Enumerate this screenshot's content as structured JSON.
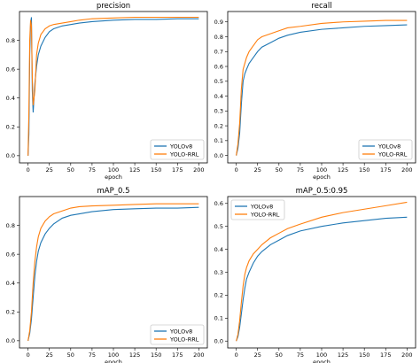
{
  "colors": {
    "series_0": "#1f77b4",
    "series_1": "#ff7f0e",
    "axis": "#000000",
    "legend_border": "#cccccc"
  },
  "chart_data": [
    {
      "type": "line",
      "title": "precision",
      "xlabel": "epoch",
      "ylabel": "",
      "xlim": [
        -10,
        210
      ],
      "ylim": [
        -0.05,
        1.0
      ],
      "xticks": [
        0,
        25,
        50,
        75,
        100,
        125,
        150,
        175,
        200
      ],
      "yticks": [
        0.0,
        0.2,
        0.4,
        0.6,
        0.8
      ],
      "ytick_labels": [
        "0.0",
        "0.2",
        "0.4",
        "0.6",
        "0.8"
      ],
      "legend_position": "lower-right",
      "series": [
        {
          "name": "YOLOv8",
          "x": [
            0,
            1,
            2,
            3,
            4,
            5,
            6,
            8,
            10,
            12,
            15,
            20,
            25,
            30,
            40,
            50,
            60,
            75,
            100,
            125,
            150,
            175,
            200
          ],
          "y": [
            0.0,
            0.15,
            0.7,
            0.92,
            0.96,
            0.45,
            0.3,
            0.5,
            0.62,
            0.7,
            0.76,
            0.82,
            0.86,
            0.88,
            0.9,
            0.91,
            0.92,
            0.93,
            0.94,
            0.945,
            0.945,
            0.95,
            0.95
          ]
        },
        {
          "name": "YOLO-RRL",
          "x": [
            0,
            1,
            2,
            3,
            4,
            5,
            6,
            8,
            10,
            12,
            15,
            20,
            25,
            30,
            40,
            50,
            60,
            75,
            100,
            125,
            150,
            175,
            200
          ],
          "y": [
            0.0,
            0.3,
            0.8,
            0.94,
            0.9,
            0.55,
            0.35,
            0.45,
            0.7,
            0.78,
            0.84,
            0.88,
            0.9,
            0.91,
            0.92,
            0.93,
            0.94,
            0.95,
            0.955,
            0.96,
            0.96,
            0.96,
            0.96
          ]
        }
      ]
    },
    {
      "type": "line",
      "title": "recall",
      "xlabel": "epoch",
      "ylabel": "",
      "xlim": [
        -10,
        210
      ],
      "ylim": [
        -0.05,
        0.97
      ],
      "xticks": [
        0,
        25,
        50,
        75,
        100,
        125,
        150,
        175,
        200
      ],
      "yticks": [
        0.0,
        0.1,
        0.2,
        0.3,
        0.4,
        0.5,
        0.6,
        0.7,
        0.8,
        0.9
      ],
      "ytick_labels": [
        "0.0",
        "0.1",
        "0.2",
        "0.3",
        "0.4",
        "0.5",
        "0.6",
        "0.7",
        "0.8",
        "0.9"
      ],
      "legend_position": "lower-right",
      "series": [
        {
          "name": "YOLOv8",
          "x": [
            0,
            2,
            4,
            6,
            8,
            10,
            12,
            15,
            20,
            25,
            30,
            40,
            50,
            60,
            75,
            100,
            125,
            150,
            175,
            200
          ],
          "y": [
            0.0,
            0.05,
            0.15,
            0.35,
            0.5,
            0.55,
            0.58,
            0.62,
            0.66,
            0.7,
            0.73,
            0.76,
            0.79,
            0.81,
            0.83,
            0.85,
            0.86,
            0.87,
            0.875,
            0.88
          ]
        },
        {
          "name": "YOLO-RRL",
          "x": [
            0,
            2,
            4,
            6,
            8,
            10,
            12,
            15,
            20,
            25,
            30,
            40,
            50,
            60,
            75,
            100,
            125,
            150,
            175,
            200
          ],
          "y": [
            0.0,
            0.08,
            0.22,
            0.45,
            0.58,
            0.62,
            0.66,
            0.7,
            0.74,
            0.78,
            0.8,
            0.82,
            0.84,
            0.86,
            0.87,
            0.89,
            0.9,
            0.905,
            0.91,
            0.91
          ]
        }
      ]
    },
    {
      "type": "line",
      "title": "mAP_0.5",
      "xlabel": "epoch",
      "ylabel": "",
      "xlim": [
        -10,
        210
      ],
      "ylim": [
        -0.05,
        1.0
      ],
      "xticks": [
        0,
        25,
        50,
        75,
        100,
        125,
        150,
        175,
        200
      ],
      "yticks": [
        0.0,
        0.2,
        0.4,
        0.6,
        0.8
      ],
      "ytick_labels": [
        "0.0",
        "0.2",
        "0.4",
        "0.6",
        "0.8"
      ],
      "legend_position": "lower-right",
      "series": [
        {
          "name": "YOLOv8",
          "x": [
            0,
            2,
            4,
            6,
            8,
            10,
            12,
            15,
            20,
            25,
            30,
            40,
            50,
            60,
            75,
            100,
            125,
            150,
            175,
            200
          ],
          "y": [
            0.0,
            0.05,
            0.15,
            0.3,
            0.45,
            0.55,
            0.62,
            0.68,
            0.74,
            0.78,
            0.81,
            0.85,
            0.87,
            0.88,
            0.895,
            0.91,
            0.915,
            0.92,
            0.92,
            0.925
          ]
        },
        {
          "name": "YOLO-RRL",
          "x": [
            0,
            2,
            4,
            6,
            8,
            10,
            12,
            15,
            20,
            25,
            30,
            40,
            50,
            60,
            75,
            100,
            125,
            150,
            175,
            200
          ],
          "y": [
            0.0,
            0.07,
            0.2,
            0.4,
            0.55,
            0.65,
            0.72,
            0.78,
            0.83,
            0.86,
            0.88,
            0.9,
            0.92,
            0.93,
            0.935,
            0.94,
            0.945,
            0.95,
            0.95,
            0.95
          ]
        }
      ]
    },
    {
      "type": "line",
      "title": "mAP_0.5:0.95",
      "xlabel": "epoch",
      "ylabel": "",
      "xlim": [
        -10,
        210
      ],
      "ylim": [
        -0.03,
        0.63
      ],
      "xticks": [
        0,
        25,
        50,
        75,
        100,
        125,
        150,
        175,
        200
      ],
      "yticks": [
        0.0,
        0.1,
        0.2,
        0.3,
        0.4,
        0.5,
        0.6
      ],
      "ytick_labels": [
        "0.0",
        "0.1",
        "0.2",
        "0.3",
        "0.4",
        "0.5",
        "0.6"
      ],
      "legend_position": "top-left",
      "series": [
        {
          "name": "YOLOv8",
          "x": [
            0,
            2,
            4,
            6,
            8,
            10,
            12,
            15,
            20,
            25,
            30,
            40,
            50,
            60,
            75,
            100,
            125,
            150,
            175,
            200
          ],
          "y": [
            0.0,
            0.02,
            0.06,
            0.12,
            0.18,
            0.23,
            0.27,
            0.3,
            0.34,
            0.37,
            0.39,
            0.42,
            0.44,
            0.46,
            0.48,
            0.5,
            0.515,
            0.525,
            0.535,
            0.54
          ]
        },
        {
          "name": "YOLO-RRL",
          "x": [
            0,
            2,
            4,
            6,
            8,
            10,
            12,
            15,
            20,
            25,
            30,
            40,
            50,
            60,
            75,
            100,
            125,
            150,
            175,
            200
          ],
          "y": [
            0.0,
            0.03,
            0.09,
            0.17,
            0.24,
            0.29,
            0.32,
            0.35,
            0.38,
            0.4,
            0.42,
            0.45,
            0.47,
            0.49,
            0.51,
            0.54,
            0.56,
            0.575,
            0.59,
            0.605
          ]
        }
      ]
    }
  ]
}
